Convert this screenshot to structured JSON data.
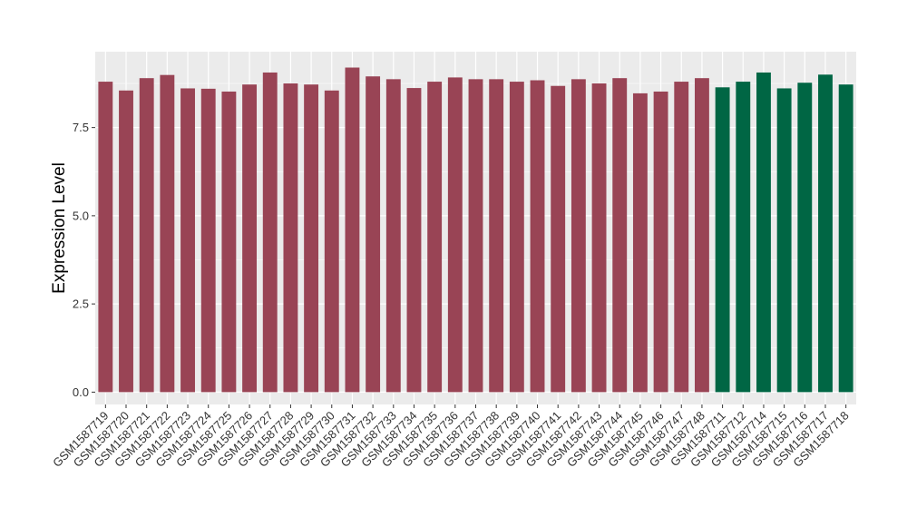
{
  "chart_data": {
    "type": "bar",
    "ylabel": "Expression Level",
    "xlabel": "",
    "ylim": [
      -0.35,
      9.65
    ],
    "yticks": [
      0.0,
      2.5,
      5.0,
      7.5
    ],
    "ytick_labels": [
      "0.0",
      "2.5",
      "5.0",
      "7.5"
    ],
    "grid": true,
    "panel_background": "#EBEBEB",
    "grid_color": "#FFFFFF",
    "categories": [
      "GSM1587719",
      "GSM1587720",
      "GSM1587721",
      "GSM1587722",
      "GSM1587723",
      "GSM1587724",
      "GSM1587725",
      "GSM1587726",
      "GSM1587727",
      "GSM1587728",
      "GSM1587729",
      "GSM1587730",
      "GSM1587731",
      "GSM1587732",
      "GSM1587733",
      "GSM1587734",
      "GSM1587735",
      "GSM1587736",
      "GSM1587737",
      "GSM1587738",
      "GSM1587739",
      "GSM1587740",
      "GSM1587741",
      "GSM1587742",
      "GSM1587743",
      "GSM1587744",
      "GSM1587745",
      "GSM1587746",
      "GSM1587747",
      "GSM1587748",
      "GSM1587711",
      "GSM1587712",
      "GSM1587714",
      "GSM1587715",
      "GSM1587716",
      "GSM1587717",
      "GSM1587718"
    ],
    "values": [
      8.8,
      8.55,
      8.9,
      8.99,
      8.61,
      8.6,
      8.52,
      8.72,
      9.06,
      8.75,
      8.72,
      8.55,
      9.2,
      8.95,
      8.87,
      8.62,
      8.8,
      8.92,
      8.87,
      8.87,
      8.8,
      8.84,
      8.68,
      8.87,
      8.75,
      8.9,
      8.47,
      8.52,
      8.8,
      8.9,
      8.64,
      8.8,
      9.06,
      8.61,
      8.77,
      9.0,
      8.72
    ],
    "bar_colors": [
      "#994455",
      "#994455",
      "#994455",
      "#994455",
      "#994455",
      "#994455",
      "#994455",
      "#994455",
      "#994455",
      "#994455",
      "#994455",
      "#994455",
      "#994455",
      "#994455",
      "#994455",
      "#994455",
      "#994455",
      "#994455",
      "#994455",
      "#994455",
      "#994455",
      "#994455",
      "#994455",
      "#994455",
      "#994455",
      "#994455",
      "#994455",
      "#994455",
      "#994455",
      "#994455",
      "#006644",
      "#006644",
      "#006644",
      "#006644",
      "#006644",
      "#006644",
      "#006644"
    ]
  }
}
